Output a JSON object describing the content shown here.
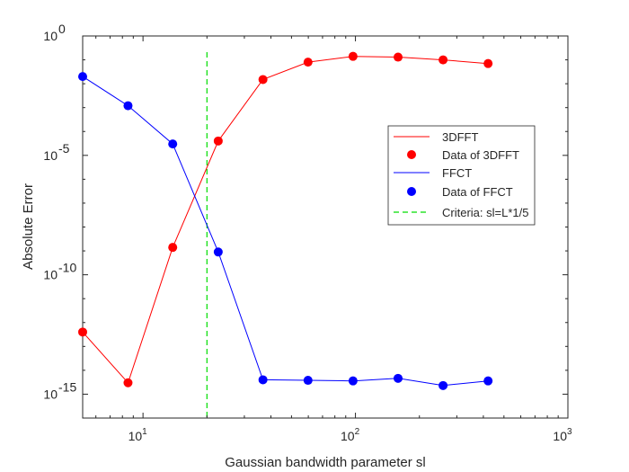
{
  "chart_data": {
    "type": "line",
    "xlabel": "Gaussian bandwidth parameter sl",
    "ylabel": "Absolute Error",
    "xscale": "log",
    "yscale": "log",
    "xlim": [
      5.2,
      1000
    ],
    "ylim": [
      1e-16,
      1
    ],
    "x_ticks": [
      {
        "value": 10,
        "base": "10",
        "exp": "1"
      },
      {
        "value": 100,
        "base": "10",
        "exp": "2"
      },
      {
        "value": 1000,
        "base": "10",
        "exp": "3"
      }
    ],
    "y_ticks": [
      {
        "value": 1e-15,
        "base": "10",
        "exp": "-15"
      },
      {
        "value": 1e-10,
        "base": "10",
        "exp": "-10"
      },
      {
        "value": 1e-05,
        "base": "10",
        "exp": "-5"
      },
      {
        "value": 1,
        "base": "10",
        "exp": "0"
      }
    ],
    "grid": false,
    "legend_position": "right",
    "x": [
      5.2,
      8.5,
      13.8,
      22.6,
      36.7,
      59.8,
      97.4,
      158.7,
      258.5,
      421.1
    ],
    "series": [
      {
        "name": "3DFFT",
        "marker_name": "Data of 3DFFT",
        "color": "#ff0000",
        "values": [
          4e-13,
          3e-15,
          1.4e-09,
          4e-05,
          0.015,
          0.08,
          0.14,
          0.13,
          0.1,
          0.07
        ]
      },
      {
        "name": "FFCT",
        "marker_name": "Data of FFCT",
        "color": "#0000ff",
        "values": [
          0.02,
          0.0012,
          3e-05,
          9e-10,
          4e-15,
          3.8e-15,
          3.6e-15,
          4.6e-15,
          2.3e-15,
          3.6e-15
        ]
      }
    ],
    "reference_line": {
      "name": "Criteria: sl=L*1/5",
      "x": 20,
      "color": "#00dd00",
      "style": "dashed"
    }
  }
}
